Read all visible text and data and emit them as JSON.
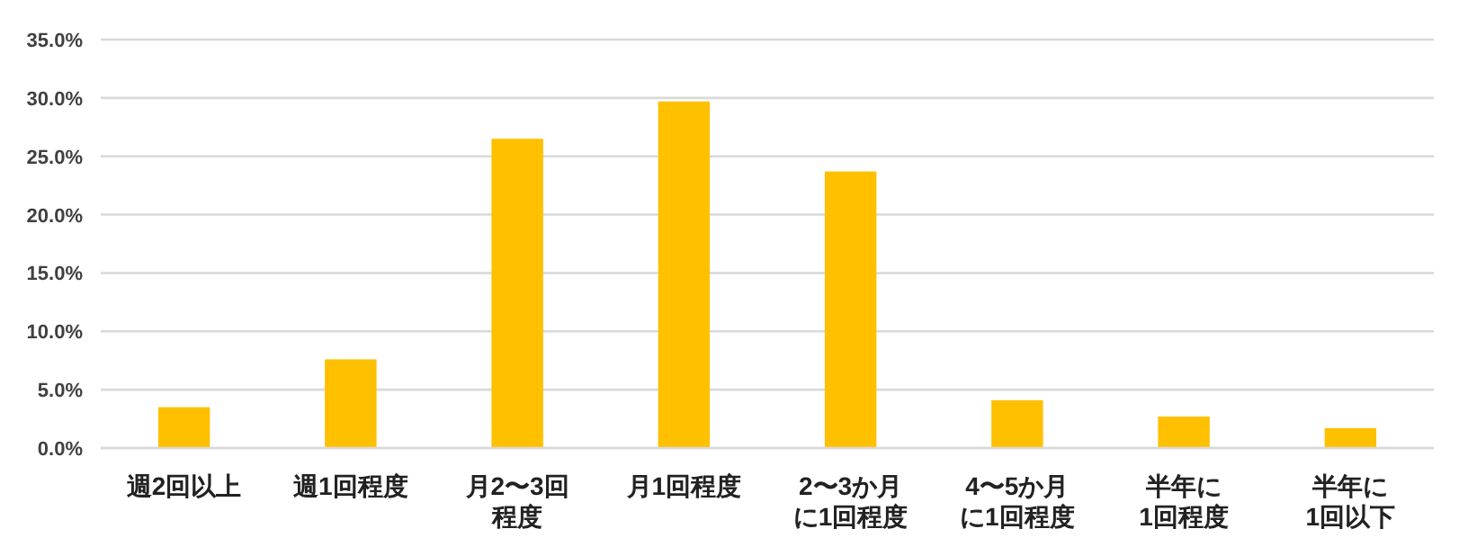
{
  "chart_data": {
    "type": "bar",
    "categories": [
      "週2回以上",
      "週1回程度",
      "月2〜3回程度",
      "月1回程度",
      "2〜3か月に1回程度",
      "4〜5か月に1回程度",
      "半年に1回程度",
      "半年に1回以下"
    ],
    "values": [
      3.5,
      7.6,
      26.5,
      29.7,
      23.7,
      4.1,
      2.7,
      1.7
    ],
    "color": "#ffc000",
    "ylim": [
      0,
      35
    ],
    "yticks": [
      {
        "value": 0,
        "label": "0.0%"
      },
      {
        "value": 5,
        "label": "5.0%"
      },
      {
        "value": 10,
        "label": "10.0%"
      },
      {
        "value": 15,
        "label": "15.0%"
      },
      {
        "value": 20,
        "label": "20.0%"
      },
      {
        "value": 25,
        "label": "25.0%"
      },
      {
        "value": 30,
        "label": "30.0%"
      },
      {
        "value": 35,
        "label": "35.0%"
      }
    ],
    "grid": "y"
  }
}
